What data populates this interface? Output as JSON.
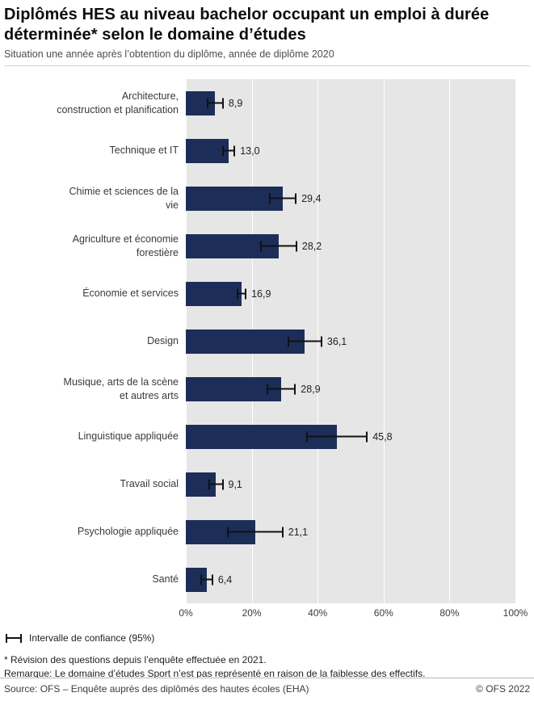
{
  "header": {
    "title": "Diplômés HES au niveau bachelor occupant un emploi à durée déterminée* selon le domaine d’études",
    "subtitle": "Situation une année après l’obtention du diplôme, année de diplôme 2020"
  },
  "chart_data": {
    "type": "bar",
    "orientation": "horizontal",
    "title": "Diplômés HES au niveau bachelor occupant un emploi à durée déterminée* selon le domaine d’études",
    "subtitle": "Situation une année après l’obtention du diplôme, année de diplôme 2020",
    "categories": [
      "Architecture, construction et planification",
      "Technique et IT",
      "Chimie et sciences de la vie",
      "Agriculture et économie forestière",
      "Économie et services",
      "Design",
      "Musique, arts de la scène et autres arts",
      "Linguistique appliquée",
      "Travail social",
      "Psychologie appliquée",
      "Santé"
    ],
    "category_label_lines": [
      [
        "Architecture,",
        "construction et planification"
      ],
      [
        "Technique et IT"
      ],
      [
        "Chimie et sciences de la",
        "vie"
      ],
      [
        "Agriculture et économie",
        "forestière"
      ],
      [
        "Économie et services"
      ],
      [
        "Design"
      ],
      [
        "Musique, arts de la scène",
        "et autres arts"
      ],
      [
        "Linguistique appliquée"
      ],
      [
        "Travail social"
      ],
      [
        "Psychologie appliquée"
      ],
      [
        "Santé"
      ]
    ],
    "values": [
      8.9,
      13.0,
      29.4,
      28.2,
      16.9,
      36.1,
      28.9,
      45.8,
      9.1,
      21.1,
      6.4
    ],
    "value_labels": [
      "8,9",
      "13,0",
      "29,4",
      "28,2",
      "16,9",
      "36,1",
      "28,9",
      "45,8",
      "9,1",
      "21,1",
      "6,4"
    ],
    "ci_low": [
      6.3,
      11.0,
      25.2,
      22.6,
      15.4,
      30.8,
      24.4,
      36.4,
      6.8,
      12.6,
      4.5
    ],
    "ci_high": [
      11.5,
      15.0,
      33.6,
      33.8,
      18.4,
      41.4,
      33.4,
      55.2,
      11.4,
      29.6,
      8.3
    ],
    "xlim": [
      0,
      100
    ],
    "x_ticks": [
      0,
      20,
      40,
      60,
      80,
      100
    ],
    "x_tick_labels": [
      "0%",
      "20%",
      "40%",
      "60%",
      "80%",
      "100%"
    ],
    "grid": "vertical-white-on-gray",
    "legend_position": "bottom-left",
    "xlabel": "",
    "ylabel": ""
  },
  "legend": {
    "label": "Intervalle de confiance (95%)"
  },
  "footnotes": {
    "line1": "* Révision des questions depuis l’enquête effectuée en 2021.",
    "line2": "Remarque: Le domaine d’études Sport n’est pas représenté en raison de la faiblesse des effectifs."
  },
  "footer": {
    "source": "Source: OFS – Enquête auprès des diplômés des hautes écoles (EHA)",
    "copyright": "© OFS 2022"
  },
  "colors": {
    "bar": "#1c2e58",
    "plot_background": "#e6e6e6",
    "gridline": "#ffffff",
    "error_bar": "#111111"
  }
}
